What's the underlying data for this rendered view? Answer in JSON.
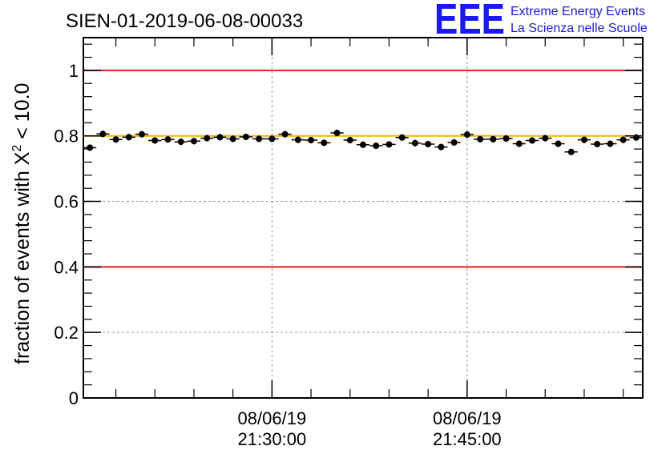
{
  "logo": {
    "mark": "EEE",
    "line1": "Extreme Energy Events",
    "line2": "La Scienza nelle Scuole",
    "color": "#1a1aee"
  },
  "chart_data": {
    "type": "scatter",
    "title": "SIEN-01-2019-06-08-00033",
    "ylabel": "fraction of events with χ² < 10.0",
    "ylabel_main": "fraction of events with X",
    "ylabel_sup": "2",
    "ylabel_tail": " < 10.0",
    "ylim": [
      0,
      1.1
    ],
    "yticks": [
      0,
      0.2,
      0.4,
      0.6,
      0.8,
      1
    ],
    "ytick_labels": [
      "0",
      "0.2",
      "0.4",
      "0.6",
      "0.8",
      "1"
    ],
    "xlim_minutes": [
      0,
      43
    ],
    "xticks": [
      {
        "minute": 14.5,
        "date": "08/06/19",
        "time": "21:30:00"
      },
      {
        "minute": 29.5,
        "date": "08/06/19",
        "time": "21:45:00"
      }
    ],
    "grid": true,
    "reference_lines": [
      {
        "y": 1.0,
        "color": "#e02020"
      },
      {
        "y": 0.4,
        "color": "#e02020"
      },
      {
        "y": 0.8,
        "color": "#f0b400"
      }
    ],
    "points": {
      "x_minutes": [
        0.5,
        1.5,
        2.5,
        3.5,
        4.5,
        5.5,
        6.5,
        7.5,
        8.5,
        9.5,
        10.5,
        11.5,
        12.5,
        13.5,
        14.5,
        15.5,
        16.5,
        17.5,
        18.5,
        19.5,
        20.5,
        21.5,
        22.5,
        23.5,
        24.5,
        25.5,
        26.5,
        27.5,
        28.5,
        29.5,
        30.5,
        31.5,
        32.5,
        33.5,
        34.5,
        35.5,
        36.5,
        37.5,
        38.5,
        39.5,
        40.5,
        41.5,
        42.5
      ],
      "y": [
        0.764,
        0.806,
        0.789,
        0.796,
        0.805,
        0.786,
        0.789,
        0.782,
        0.784,
        0.793,
        0.796,
        0.791,
        0.797,
        0.791,
        0.791,
        0.805,
        0.788,
        0.787,
        0.779,
        0.809,
        0.787,
        0.773,
        0.77,
        0.774,
        0.795,
        0.778,
        0.775,
        0.766,
        0.78,
        0.804,
        0.79,
        0.79,
        0.792,
        0.776,
        0.786,
        0.793,
        0.776,
        0.751,
        0.788,
        0.775,
        0.776,
        0.788,
        0.795
      ],
      "yerr": 0.01,
      "xerr": 0.5,
      "color": "#000000"
    }
  }
}
